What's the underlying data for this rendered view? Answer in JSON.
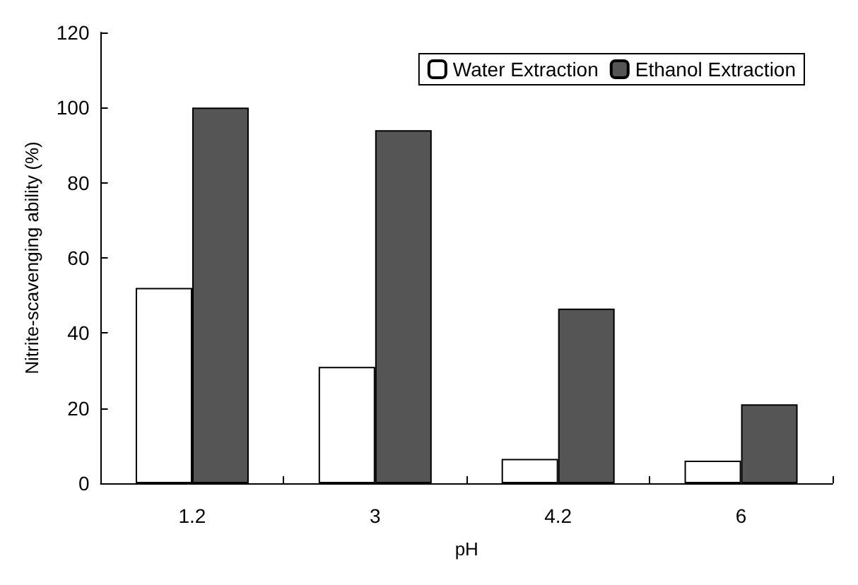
{
  "chart_data": {
    "type": "bar",
    "xlabel": "pH",
    "ylabel": "Nitrite-scavenging ability (%)",
    "categories": [
      "1.2",
      "3",
      "4.2",
      "6"
    ],
    "series": [
      {
        "name": "Water Extraction",
        "color": "#ffffff",
        "values": [
          52,
          31,
          6.5,
          6
        ]
      },
      {
        "name": "Ethanol Extraction",
        "color": "#555555",
        "values": [
          100,
          94,
          46.5,
          21
        ]
      }
    ],
    "ylim": [
      0,
      120
    ],
    "yticks": [
      0,
      20,
      40,
      60,
      80,
      100,
      120
    ],
    "grid": false,
    "legend": "top right"
  }
}
